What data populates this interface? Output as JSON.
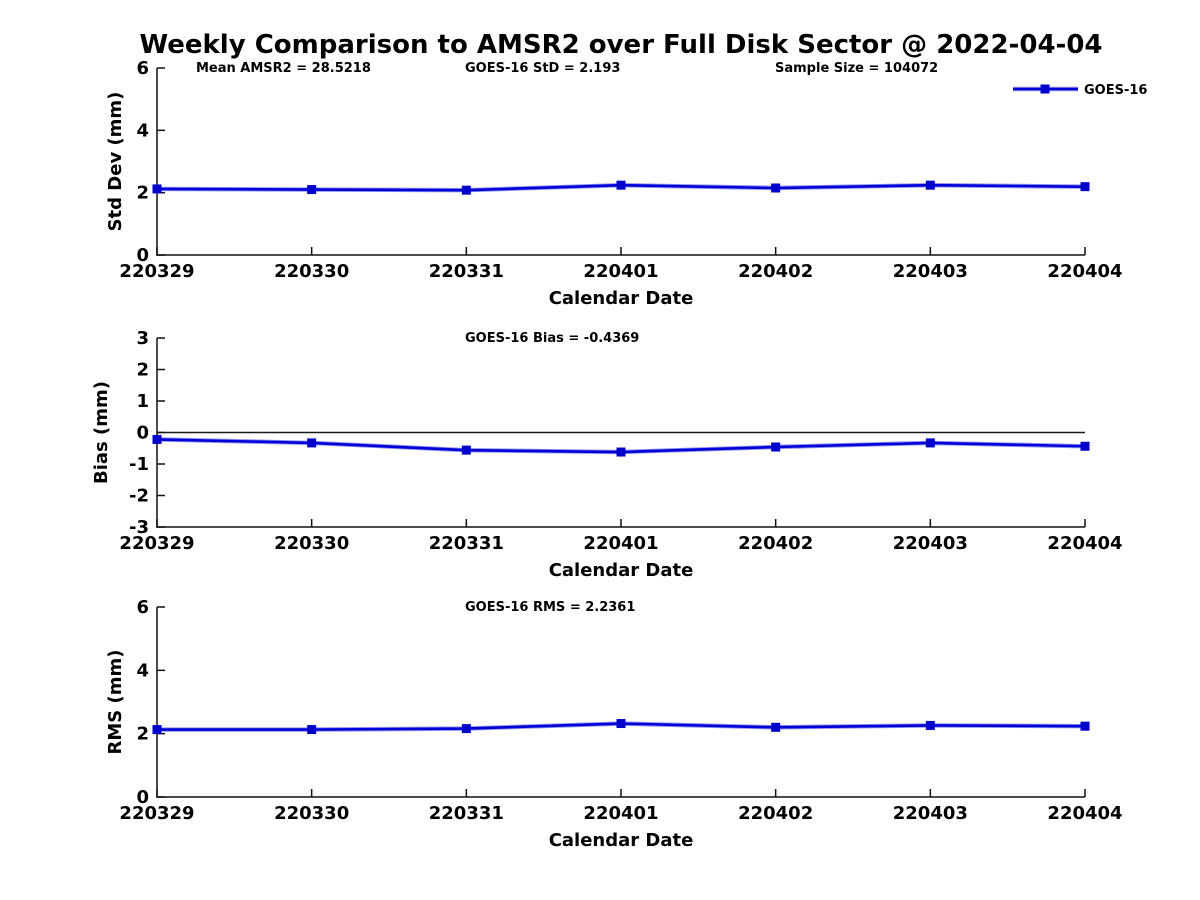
{
  "title": "Weekly Comparison to AMSR2 over Full Disk Sector @ 2022-04-04",
  "colors": {
    "background": "#ffffff",
    "line": "#0000d8",
    "line_halo": "#6b6bec",
    "marker": "#0000cc",
    "axis": "#111111",
    "zero_line": "#1a1a1a",
    "text": "#000000"
  },
  "legend": {
    "label": "GOES-16"
  },
  "chart_data": [
    {
      "id": "stddev",
      "type": "line",
      "categories": [
        "220329",
        "220330",
        "220331",
        "220401",
        "220402",
        "220403",
        "220404"
      ],
      "series": [
        {
          "name": "GOES-16",
          "values": [
            2.12,
            2.1,
            2.08,
            2.24,
            2.15,
            2.24,
            2.193
          ]
        }
      ],
      "annotations": [
        "Mean AMSR2 = 28.5218",
        "GOES-16 StD = 2.193",
        "Sample Size = 104072"
      ],
      "xlabel": "Calendar Date",
      "ylabel": "Std Dev (mm)",
      "ylim": [
        0,
        6
      ],
      "yticks": [
        "0",
        "2",
        "4",
        "6"
      ],
      "ytick_values": [
        0,
        2,
        4,
        6
      ],
      "zero_line": false,
      "grid": false,
      "show_legend": true,
      "legend_position": "top-right"
    },
    {
      "id": "bias",
      "type": "line",
      "categories": [
        "220329",
        "220330",
        "220331",
        "220401",
        "220402",
        "220403",
        "220404"
      ],
      "series": [
        {
          "name": "GOES-16",
          "values": [
            -0.22,
            -0.33,
            -0.56,
            -0.62,
            -0.46,
            -0.33,
            -0.4369
          ]
        }
      ],
      "annotations": [
        "GOES-16 Bias  = -0.4369"
      ],
      "xlabel": "Calendar Date",
      "ylabel": "Bias (mm)",
      "ylim": [
        -3,
        3
      ],
      "yticks": [
        "-3",
        "-2",
        "-1",
        "0",
        "1",
        "2",
        "3"
      ],
      "ytick_values": [
        -3,
        -2,
        -1,
        0,
        1,
        2,
        3
      ],
      "zero_line": true,
      "grid": false,
      "show_legend": false,
      "legend_position": "none"
    },
    {
      "id": "rms",
      "type": "line",
      "categories": [
        "220329",
        "220330",
        "220331",
        "220401",
        "220402",
        "220403",
        "220404"
      ],
      "series": [
        {
          "name": "GOES-16",
          "values": [
            2.13,
            2.13,
            2.16,
            2.32,
            2.2,
            2.26,
            2.2361
          ]
        }
      ],
      "annotations": [
        "GOES-16 RMS = 2.2361"
      ],
      "xlabel": "Calendar Date",
      "ylabel": "RMS (mm)",
      "ylim": [
        0,
        6
      ],
      "yticks": [
        "0",
        "2",
        "4",
        "6"
      ],
      "ytick_values": [
        0,
        2,
        4,
        6
      ],
      "zero_line": false,
      "grid": false,
      "show_legend": false,
      "legend_position": "none"
    }
  ]
}
